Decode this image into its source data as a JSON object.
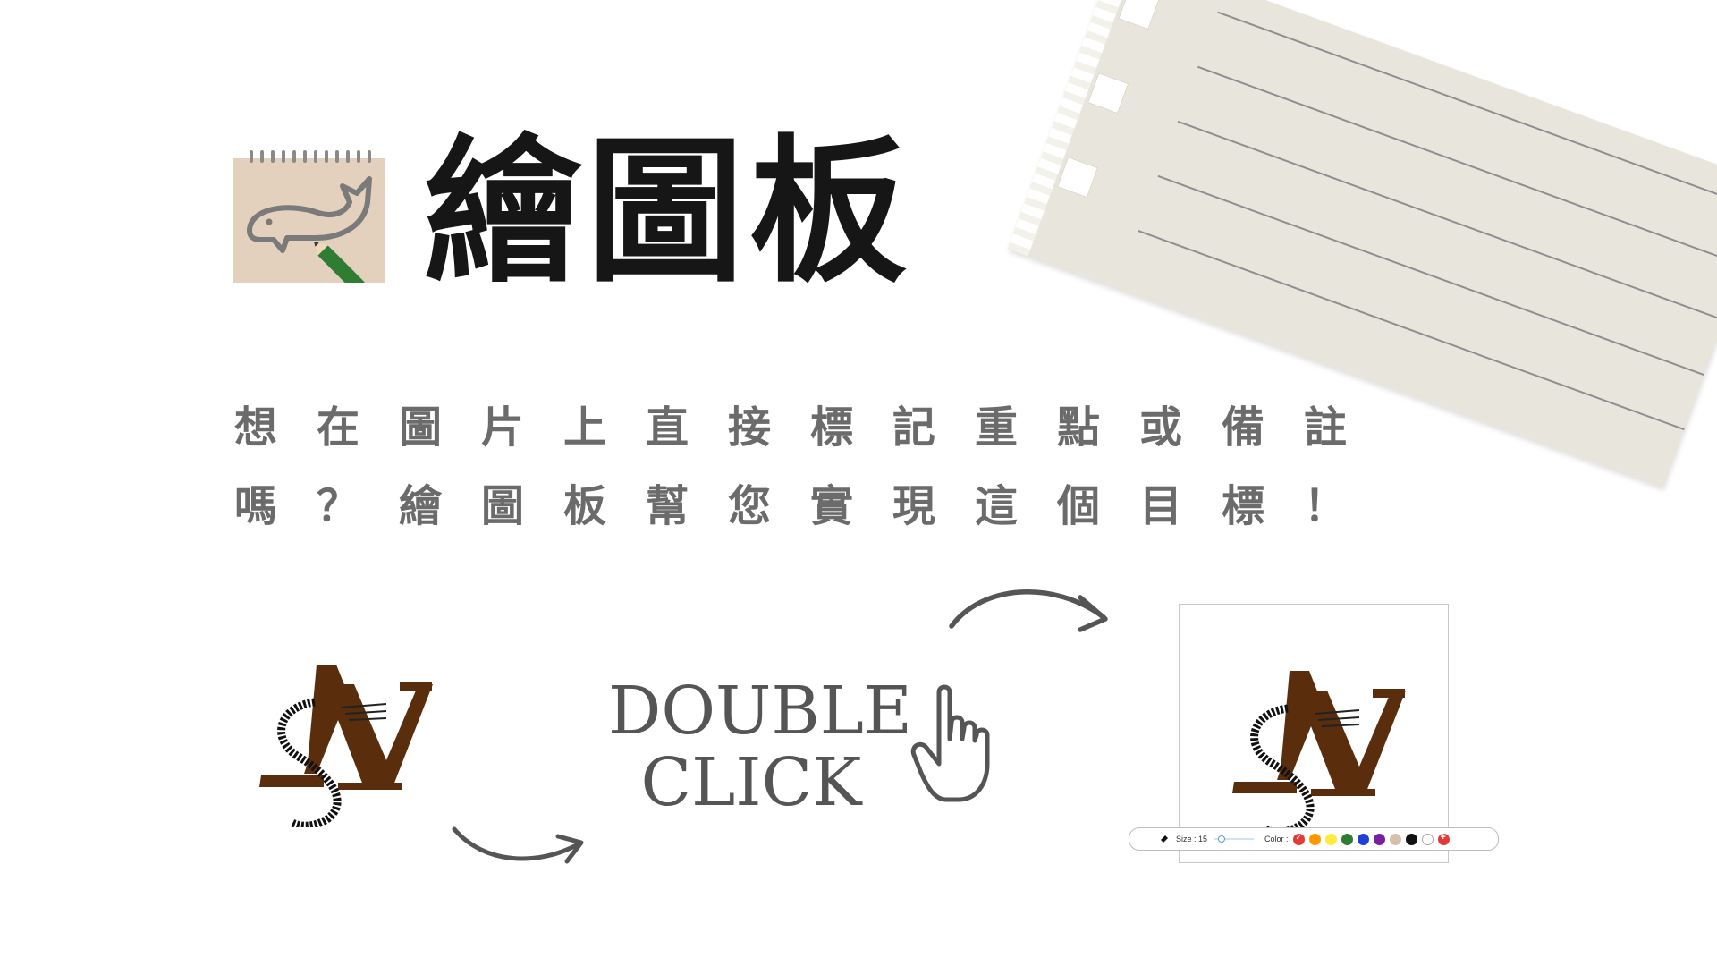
{
  "header": {
    "title": "繪圖板",
    "icon": "sketchpad-whale-pencil-icon"
  },
  "description": {
    "line1": "想在圖片上直接標記重點或備註",
    "line2": "嗎？繪圖板幫您實現這個目標！"
  },
  "illustration": {
    "double_click_line1": "DOUBLE",
    "double_click_line2": "CLICK",
    "hand_icon": "pointing-hand-icon",
    "arrow_icon": "curved-arrow-icon"
  },
  "toolbar": {
    "size_label": "Size : 15",
    "color_label": "Color :",
    "colors": [
      "#e53935",
      "#ff9800",
      "#ffeb3b",
      "#2e7d32",
      "#1e3fd8",
      "#7b1fa2",
      "#d7bfae",
      "#111111",
      "#ffffff"
    ],
    "add_color_icon": "plus-icon"
  },
  "colors": {
    "logo_brown": "#5a2d0c",
    "description_gray": "#6b6b6b",
    "paper": "#e8e6dc"
  }
}
